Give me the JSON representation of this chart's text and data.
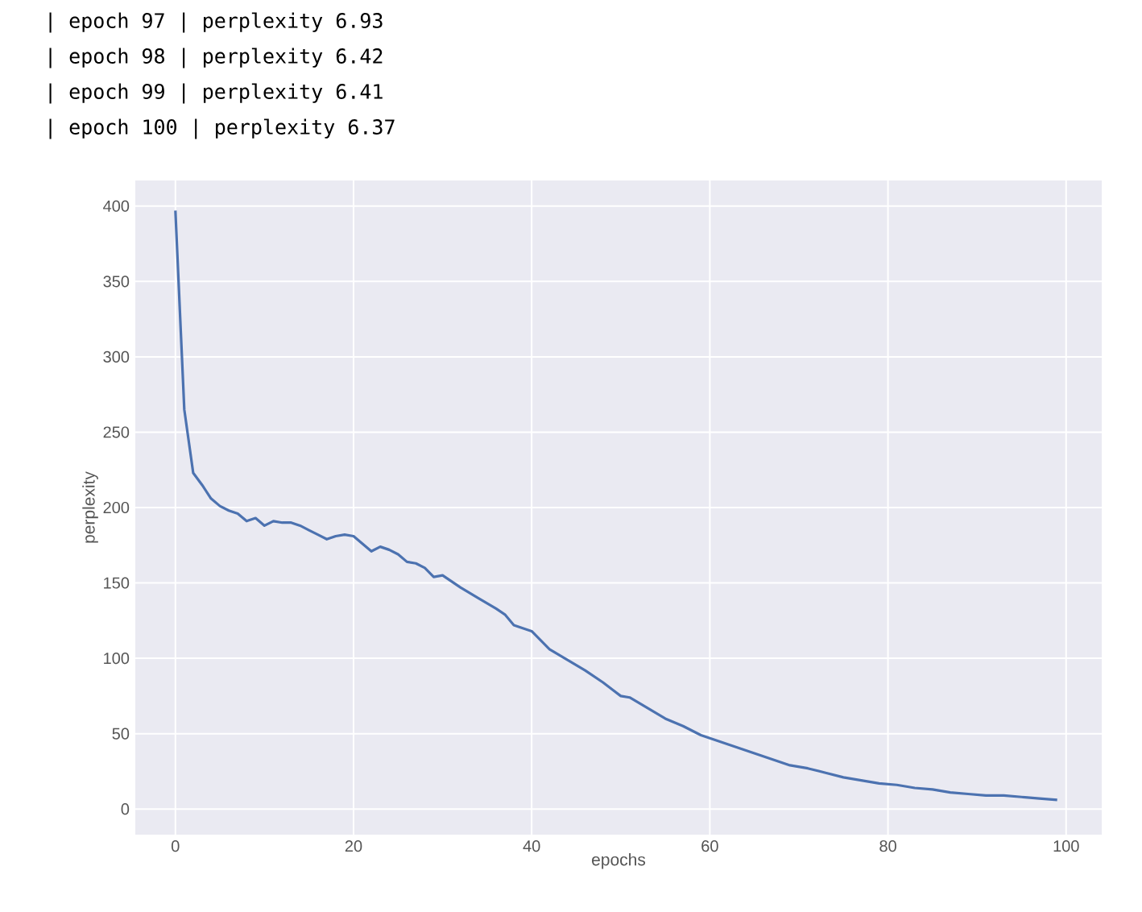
{
  "chart_data": {
    "type": "line",
    "xlabel": "epochs",
    "ylabel": "perplexity",
    "annotations": [
      "| epoch 97 | perplexity 6.93",
      "| epoch 98 | perplexity 6.42",
      "| epoch 99 | perplexity 6.41",
      "| epoch 100 | perplexity 6.37"
    ],
    "xlim": [
      -4.5,
      104
    ],
    "ylim": [
      -17,
      417
    ],
    "xticks": [
      0,
      20,
      40,
      60,
      80,
      100
    ],
    "yticks": [
      0,
      50,
      100,
      150,
      200,
      250,
      300,
      350,
      400
    ],
    "grid": true,
    "marker": "none",
    "line_style": "solid",
    "series": [
      {
        "color": "#4c72b0",
        "x": [
          0,
          1,
          2,
          3,
          4,
          5,
          6,
          7,
          8,
          9,
          10,
          11,
          12,
          13,
          14,
          15,
          16,
          17,
          18,
          19,
          20,
          21,
          22,
          23,
          24,
          25,
          26,
          27,
          28,
          29,
          30,
          32,
          34,
          36,
          37,
          38,
          40,
          42,
          44,
          46,
          48,
          50,
          51,
          53,
          55,
          57,
          59,
          61,
          63,
          65,
          67,
          69,
          71,
          73,
          75,
          77,
          79,
          81,
          83,
          85,
          87,
          89,
          91,
          93,
          95,
          97,
          99
        ],
        "values": [
          397,
          265,
          223,
          215,
          206,
          201,
          198,
          196,
          191,
          193,
          188,
          191,
          190,
          190,
          188,
          185,
          182,
          179,
          181,
          182,
          181,
          176,
          171,
          174,
          172,
          169,
          164,
          163,
          160,
          154,
          155,
          147,
          140,
          133,
          129,
          122,
          118,
          106,
          99,
          92,
          84,
          75,
          74,
          67,
          60,
          55,
          49,
          45,
          41,
          37,
          33,
          29,
          27,
          24,
          21,
          19,
          17,
          16,
          14,
          13,
          11,
          10,
          9,
          9,
          8,
          7,
          6
        ]
      }
    ]
  }
}
